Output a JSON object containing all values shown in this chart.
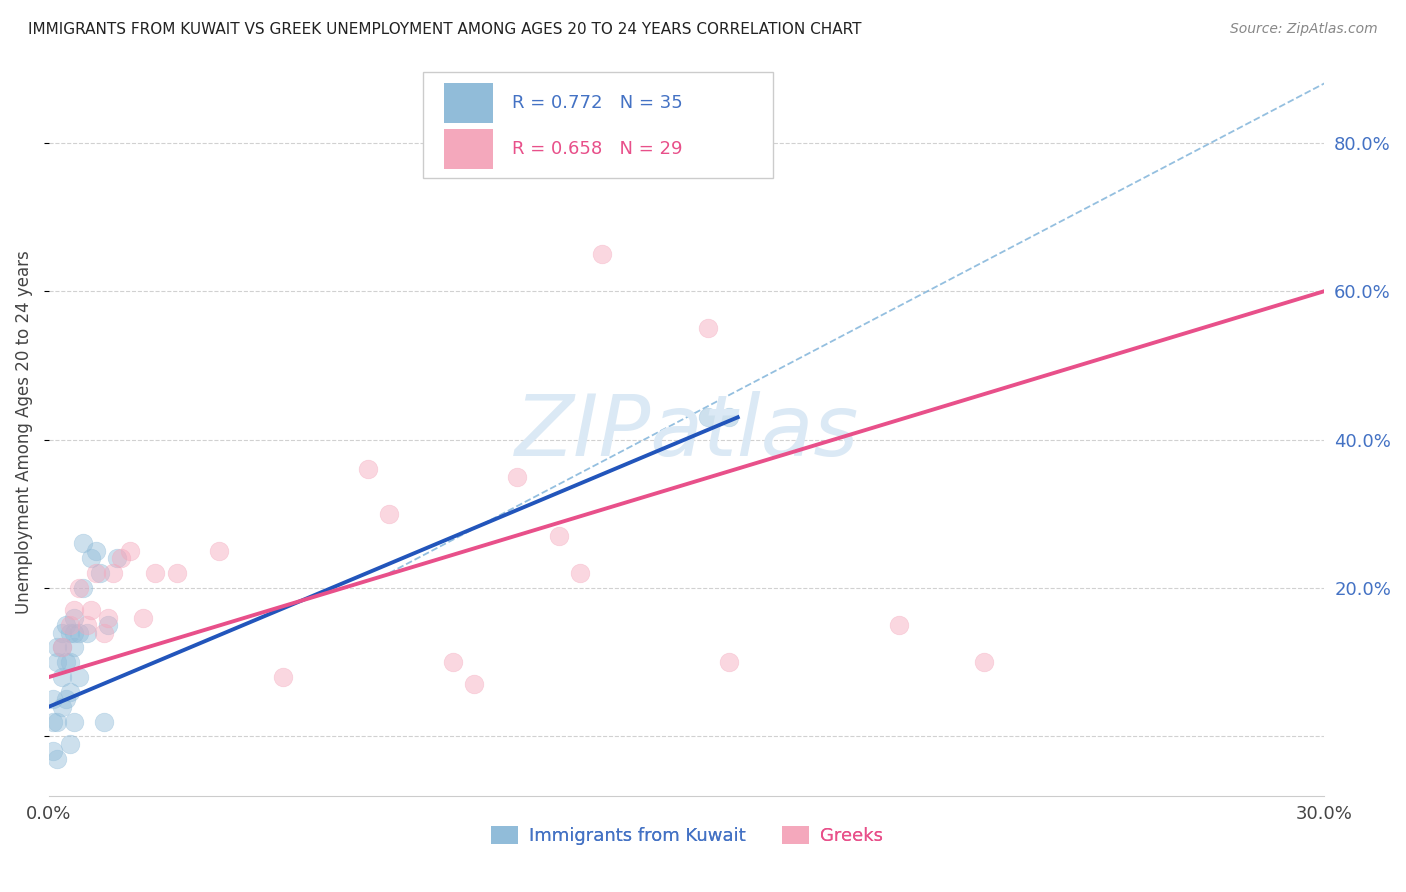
{
  "title": "IMMIGRANTS FROM KUWAIT VS GREEK UNEMPLOYMENT AMONG AGES 20 TO 24 YEARS CORRELATION CHART",
  "source": "Source: ZipAtlas.com",
  "ylabel": "Unemployment Among Ages 20 to 24 years",
  "xlim": [
    0.0,
    0.3
  ],
  "ylim": [
    -0.08,
    0.9
  ],
  "x_ticks": [
    0.0,
    0.05,
    0.1,
    0.15,
    0.2,
    0.25,
    0.3
  ],
  "y_ticks_right": [
    0.0,
    0.2,
    0.4,
    0.6,
    0.8
  ],
  "legend_text_1": "R = 0.772   N = 35",
  "legend_text_2": "R = 0.658   N = 29",
  "legend_label_1": "Immigrants from Kuwait",
  "legend_label_2": "Greeks",
  "blue_scatter_x": [
    0.001,
    0.001,
    0.001,
    0.002,
    0.002,
    0.002,
    0.002,
    0.003,
    0.003,
    0.003,
    0.003,
    0.004,
    0.004,
    0.004,
    0.005,
    0.005,
    0.005,
    0.005,
    0.006,
    0.006,
    0.006,
    0.006,
    0.007,
    0.007,
    0.008,
    0.008,
    0.009,
    0.01,
    0.011,
    0.012,
    0.013,
    0.014,
    0.016,
    0.155,
    0.16
  ],
  "blue_scatter_y": [
    0.02,
    0.05,
    -0.02,
    0.1,
    0.12,
    0.02,
    -0.03,
    0.14,
    0.04,
    0.08,
    0.12,
    0.1,
    0.15,
    0.05,
    0.1,
    0.14,
    0.06,
    -0.01,
    0.12,
    0.14,
    0.16,
    0.02,
    0.08,
    0.14,
    0.2,
    0.26,
    0.14,
    0.24,
    0.25,
    0.22,
    0.02,
    0.15,
    0.24,
    0.43,
    0.43
  ],
  "pink_scatter_x": [
    0.003,
    0.005,
    0.006,
    0.007,
    0.009,
    0.01,
    0.011,
    0.013,
    0.014,
    0.015,
    0.017,
    0.019,
    0.022,
    0.025,
    0.03,
    0.04,
    0.055,
    0.075,
    0.08,
    0.095,
    0.1,
    0.11,
    0.12,
    0.125,
    0.13,
    0.155,
    0.16,
    0.2,
    0.22
  ],
  "pink_scatter_y": [
    0.12,
    0.15,
    0.17,
    0.2,
    0.15,
    0.17,
    0.22,
    0.14,
    0.16,
    0.22,
    0.24,
    0.25,
    0.16,
    0.22,
    0.22,
    0.25,
    0.08,
    0.36,
    0.3,
    0.1,
    0.07,
    0.35,
    0.27,
    0.22,
    0.65,
    0.55,
    0.1,
    0.15,
    0.1
  ],
  "blue_line_x": [
    0.0,
    0.162
  ],
  "blue_line_y": [
    0.04,
    0.43
  ],
  "pink_line_x": [
    0.0,
    0.3
  ],
  "pink_line_y": [
    0.08,
    0.6
  ],
  "ref_line_x": [
    0.08,
    0.3
  ],
  "ref_line_y": [
    0.22,
    0.88
  ],
  "scatter_size": 180,
  "scatter_alpha": 0.45,
  "blue_color": "#91bcd9",
  "pink_color": "#f4a8bc",
  "blue_line_color": "#2255bb",
  "pink_line_color": "#e8508a",
  "ref_line_color": "#7ab0d8",
  "grid_color": "#cccccc",
  "watermark": "ZIPatlas",
  "watermark_color": "#dbe9f5",
  "background_color": "#ffffff",
  "title_color": "#222222",
  "source_color": "#888888",
  "ylabel_color": "#444444",
  "right_tick_color": "#4472c4",
  "bottom_tick_color": "#444444"
}
